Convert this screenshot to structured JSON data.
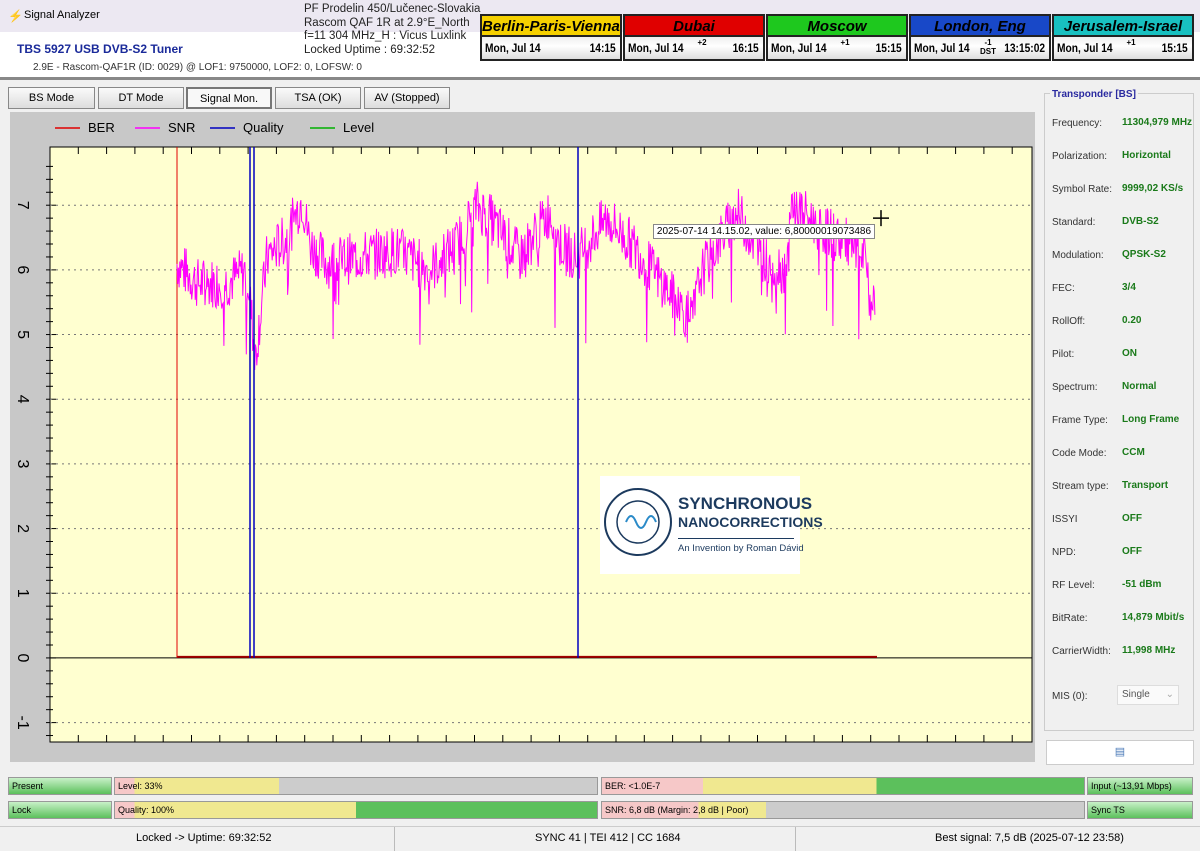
{
  "window": {
    "title": "Signal Analyzer"
  },
  "header": {
    "tuner": "TBS 5927 USB DVB-S2 Tuner",
    "details": "2.9E - Rascom-QAF1R (ID: 0029) @ LOF1: 9750000, LOF2: 0, LOFSW: 0",
    "info": [
      "PF Prodelin 450/Lučenec-Slovakia",
      "Rascom QAF 1R at 2.9°E_North",
      "f=11 304 MHz_H : Vicus Luxlink",
      "Locked Uptime : 69:32:52"
    ]
  },
  "clocks": [
    {
      "name": "Berlin-Paris-Vienna-Roma",
      "date": "Mon, Jul 14",
      "offset": "",
      "time": "14:15",
      "color": "#f5d000",
      "text": "#000"
    },
    {
      "name": "Dubai",
      "date": "Mon, Jul 14",
      "offset": "+2",
      "time": "16:15",
      "color": "#e00000",
      "text": "#000"
    },
    {
      "name": "Moscow",
      "date": "Mon, Jul 14",
      "offset": "+1",
      "time": "15:15",
      "color": "#1ec81e",
      "text": "#000"
    },
    {
      "name": "London, Eng",
      "date": "Mon, Jul 14",
      "offset": "-1 DST",
      "time": "13:15:02",
      "color": "#1848c8",
      "text": "#000"
    },
    {
      "name": "Jerusalem-Israel",
      "date": "Mon, Jul 14",
      "offset": "+1",
      "time": "15:15",
      "color": "#18c0c0",
      "text": "#000"
    }
  ],
  "tabs": [
    "BS Mode",
    "DT Mode",
    "Signal Mon.",
    "TSA (OK)",
    "AV (Stopped)"
  ],
  "active_tab": "Signal Mon.",
  "chart_data": {
    "type": "line",
    "legend": [
      "BER",
      "SNR",
      "Quality",
      "Level"
    ],
    "legend_placement": "top-left",
    "grid": true,
    "colors": {
      "BER": "#e00000",
      "SNR": "#ff00ff",
      "Quality": "#0000c0",
      "Level": "#00b000"
    },
    "ylim": [
      -1.3,
      7.9
    ],
    "yticks": [
      -1,
      0,
      1,
      2,
      3,
      4,
      5,
      6,
      7
    ],
    "xlim": [
      -127,
      855
    ],
    "snr": {
      "x": [
        0,
        20,
        50,
        70,
        74,
        78,
        90,
        110,
        125,
        133,
        150,
        180,
        220,
        253,
        280,
        300,
        313,
        343,
        373,
        383,
        400,
        430,
        460,
        500,
        515,
        523,
        540,
        560,
        590,
        610,
        615,
        640,
        670,
        690,
        693,
        698
      ],
      "y": [
        6.1,
        5.8,
        5.8,
        6.0,
        5.4,
        4.6,
        6.2,
        6.5,
        7.1,
        6.4,
        6.1,
        6.2,
        6.3,
        6.0,
        6.4,
        7.0,
        6.8,
        6.2,
        6.9,
        6.4,
        6.2,
        6.8,
        6.3,
        5.5,
        5.2,
        5.9,
        6.4,
        6.9,
        6.1,
        6.0,
        7.0,
        6.7,
        6.4,
        6.1,
        5.5,
        5.5
      ]
    },
    "ber": {
      "spikes_x": [
        0
      ],
      "baseline": 0
    },
    "quality": {
      "spikes_x": [
        73,
        77,
        401
      ]
    },
    "tooltip": "2025-07-14 14.15.02, value: 6,80000019073486"
  },
  "logo": {
    "title1": "SYNCHRONOUS",
    "title2": "NANOCORRECTIONS",
    "subtitle": "An Invention by Roman Dávid",
    "ring": "AN INVENTION BY ROMAN DÁVID"
  },
  "panel": {
    "title": "Transponder [BS]",
    "rows": [
      {
        "label": "Frequency:",
        "value": "11304,979 MHz"
      },
      {
        "label": "Polarization:",
        "value": "Horizontal"
      },
      {
        "label": "Symbol Rate:",
        "value": "9999,02 KS/s"
      },
      {
        "label": "Standard:",
        "value": "DVB-S2"
      },
      {
        "label": "Modulation:",
        "value": "QPSK-S2"
      },
      {
        "label": "FEC:",
        "value": "3/4"
      },
      {
        "label": "RollOff:",
        "value": "0.20"
      },
      {
        "label": "Pilot:",
        "value": "ON"
      },
      {
        "label": "Spectrum:",
        "value": "Normal"
      },
      {
        "label": "Frame Type:",
        "value": "Long Frame"
      },
      {
        "label": "Code Mode:",
        "value": "CCM"
      },
      {
        "label": "Stream type:",
        "value": "Transport"
      },
      {
        "label": "ISSYI",
        "value": "OFF"
      },
      {
        "label": "NPD:",
        "value": "OFF"
      },
      {
        "label": "RF Level:",
        "value": "-51 dBm"
      },
      {
        "label": "BitRate:",
        "value": "14,879 Mbit/s"
      },
      {
        "label": "CarrierWidth:",
        "value": "11,998 MHz"
      }
    ],
    "mis_label": "MIS (0):",
    "mis_value": "Single"
  },
  "bars": {
    "present": "Present",
    "lock": "Lock",
    "level": "Level: 33%",
    "level_pct": 33,
    "quality": "Quality: 100%",
    "quality_pct": 100,
    "ber": "BER: <1.0E-7",
    "snr": "SNR: 6,8 dB (Margin: 2,8 dB | Poor)",
    "snr_pct": 26,
    "input": "Input (~13,91 Mbps)",
    "sync": "Sync TS"
  },
  "status": {
    "left": "Locked -> Uptime: 69:32:52",
    "mid": "SYNC 41 | TEI 412 | CC 1684",
    "right": "Best signal: 7,5 dB (2025-07-12 23:58)"
  }
}
